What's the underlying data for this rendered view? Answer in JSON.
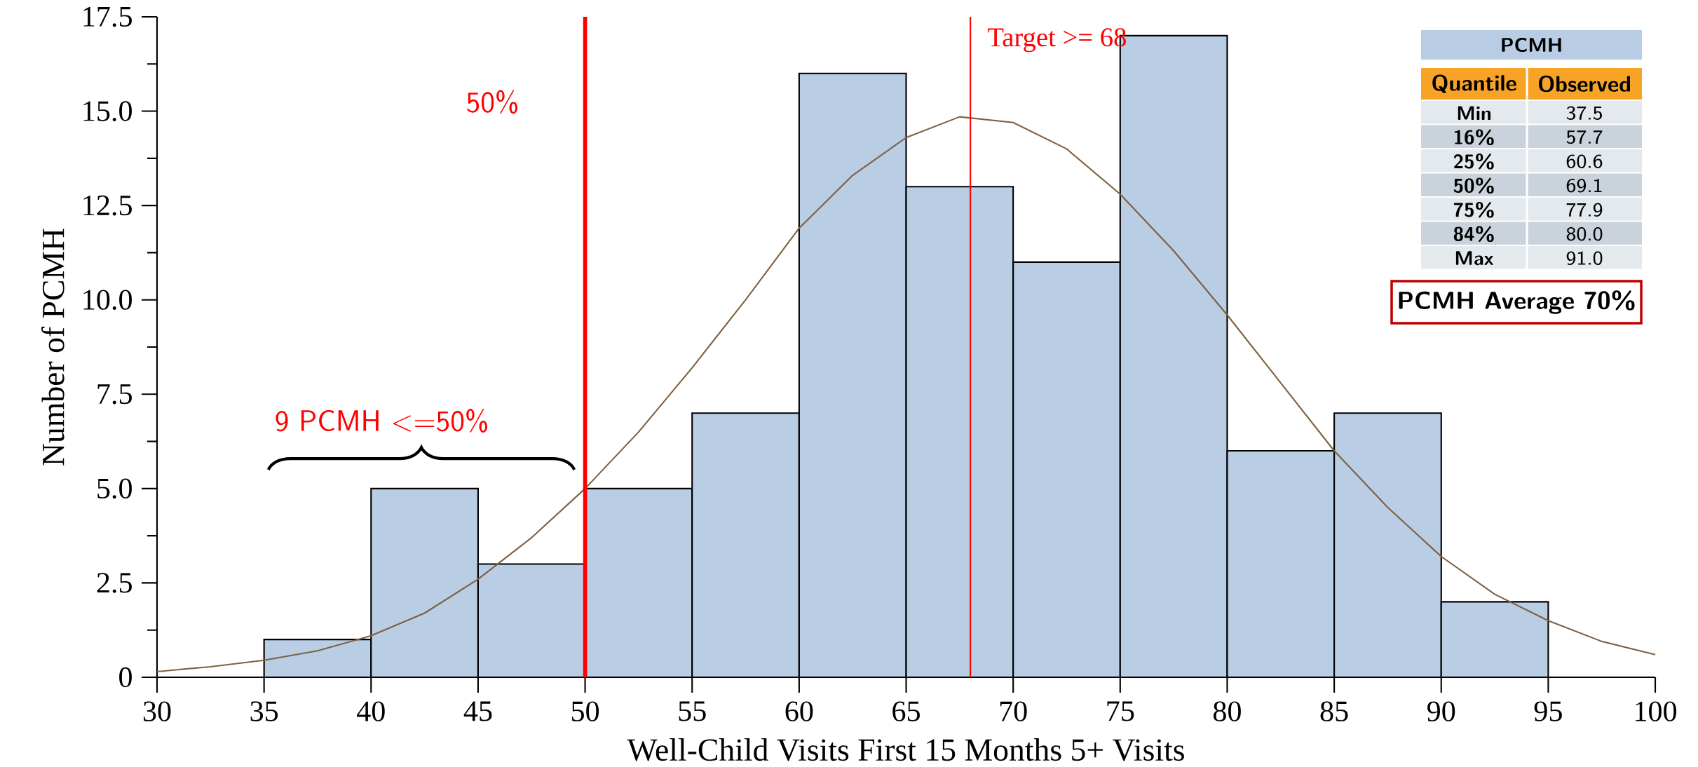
{
  "chart_data": {
    "type": "histogram",
    "bins": [
      35,
      40,
      45,
      50,
      55,
      60,
      65,
      70,
      75,
      80,
      85,
      90,
      95
    ],
    "values": [
      1,
      5,
      3,
      5,
      7,
      16,
      13,
      11,
      17,
      6,
      7,
      2
    ],
    "color": "#b9cde5",
    "series": [
      {
        "type": "line",
        "color": "#7f6040",
        "x": [
          30,
          32.5,
          35,
          37.5,
          40,
          42.5,
          45,
          47.5,
          50,
          52.5,
          55,
          57.5,
          60,
          62.5,
          65,
          67.5,
          70,
          72.5,
          75,
          77.5,
          80,
          82.5,
          85,
          87.5,
          90,
          92.5,
          95,
          97.5,
          100
        ],
        "values": [
          0.15,
          0.28,
          0.45,
          0.7,
          1.1,
          1.7,
          2.6,
          3.7,
          5.0,
          6.5,
          8.2,
          10.0,
          11.9,
          13.3,
          14.3,
          14.85,
          14.7,
          14.0,
          12.8,
          11.3,
          9.6,
          7.8,
          6.0,
          4.5,
          3.2,
          2.2,
          1.5,
          0.95,
          0.6
        ]
      }
    ],
    "xlim": [
      30,
      100
    ],
    "ylim": [
      0,
      17.5
    ],
    "xticks": [
      30,
      35,
      40,
      45,
      50,
      55,
      60,
      65,
      70,
      75,
      80,
      85,
      90,
      95,
      100
    ],
    "yticks": [
      0,
      {
        "value": 2.5,
        "label": "2.5"
      },
      {
        "value": 5,
        "label": "5.0"
      },
      {
        "value": 7.5,
        "label": "7.5"
      },
      {
        "value": 10,
        "label": "10.0"
      },
      {
        "value": 12.5,
        "label": "12.5"
      },
      {
        "value": 15,
        "label": "15.0"
      },
      {
        "value": 17.5,
        "label": "17.5"
      }
    ],
    "xlabel": "Well-Child Visits First 15 Months 5+ Visits",
    "ylabel": "Number of PCMH",
    "ref_lines": [
      {
        "axis": "x",
        "value": 50,
        "label": "50%",
        "color": "#ff0000"
      },
      {
        "axis": "x",
        "value": 68,
        "label": "Target >= 68",
        "color": "#ff0000"
      }
    ],
    "annotations": [
      "9 PCMH <=50%",
      "PCMH Average  70%",
      "PCMH",
      "Quantile",
      "Observed",
      "Min",
      "37.5",
      "16%",
      "57.7",
      "25%",
      "60.6",
      "50%",
      "69.1",
      "75%",
      "77.9",
      "84%",
      "80.0",
      "Max",
      "91.0"
    ]
  }
}
